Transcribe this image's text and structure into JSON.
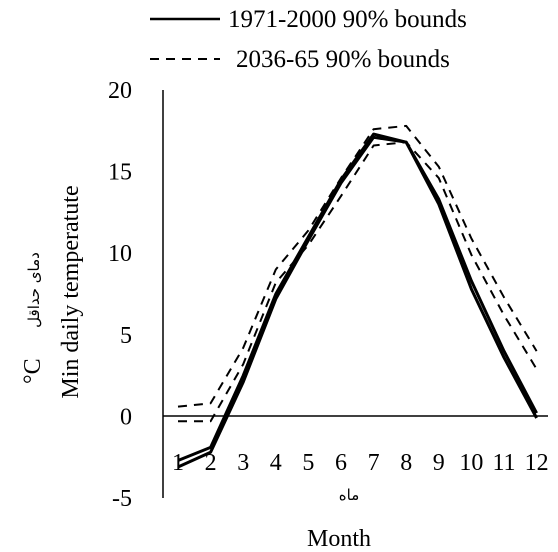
{
  "chart_data": {
    "type": "line",
    "x": [
      1,
      2,
      3,
      4,
      5,
      6,
      7,
      8,
      9,
      10,
      11,
      12
    ],
    "xtick_labels": [
      "1",
      "2",
      "3",
      "4",
      "5",
      "6",
      "7",
      "8",
      "9",
      "10",
      "11",
      "12"
    ],
    "xlabel": "Month",
    "xlabel_fa": "ماه",
    "ylabel": "Min daily temperatute",
    "ylabel_unit": "°C",
    "ylabel_fa": "دمای حداقل",
    "ylim": [
      -5,
      20
    ],
    "yticks": [
      -5,
      0,
      5,
      10,
      15,
      20
    ],
    "grid": false,
    "legend_position": "top",
    "legend": [
      {
        "label": "1971-2000 90% bounds",
        "style": "solid"
      },
      {
        "label": "2036-65 90% bounds",
        "style": "dashed"
      }
    ],
    "series": [
      {
        "group": "1971-2000",
        "style": "solid",
        "values": [
          -2.7,
          -1.9,
          2.5,
          7.5,
          11.0,
          14.5,
          17.3,
          16.8,
          13.3,
          8.3,
          4.0,
          0.2
        ]
      },
      {
        "group": "1971-2000",
        "style": "solid",
        "values": [
          -3.1,
          -2.2,
          2.1,
          7.2,
          10.8,
          14.3,
          17.1,
          16.8,
          13.0,
          7.8,
          3.6,
          -0.1
        ]
      },
      {
        "group": "2036-65",
        "style": "dashed",
        "values": [
          0.6,
          0.8,
          4.2,
          9.0,
          11.4,
          14.6,
          17.6,
          17.8,
          15.3,
          10.9,
          7.3,
          4.0
        ]
      },
      {
        "group": "2036-65",
        "style": "dashed",
        "values": [
          -0.3,
          -0.3,
          3.2,
          8.2,
          10.5,
          13.5,
          16.6,
          16.8,
          14.6,
          9.9,
          6.2,
          2.9
        ]
      }
    ]
  }
}
